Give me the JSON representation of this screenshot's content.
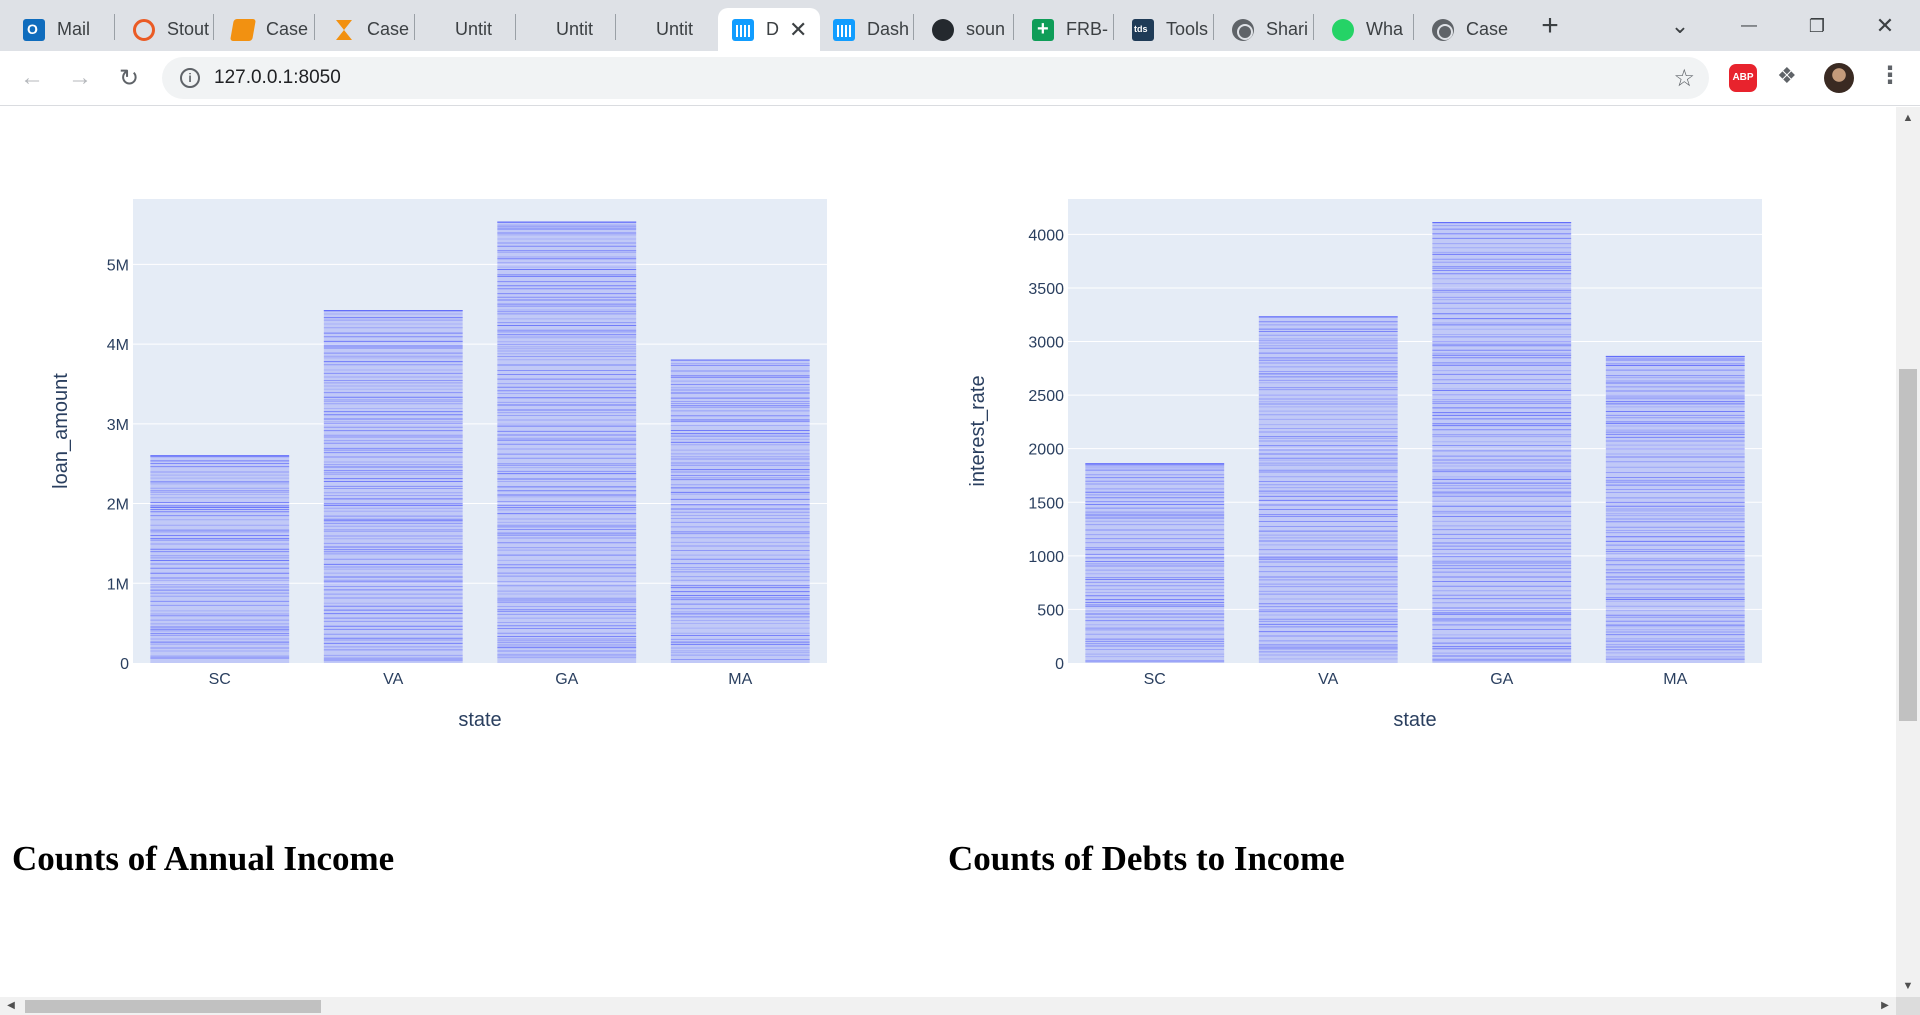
{
  "browser": {
    "tabs": [
      {
        "label": "Mail",
        "icon": "outlook-icon",
        "active": false
      },
      {
        "label": "Stout",
        "icon": "stout-icon",
        "active": false
      },
      {
        "label": "Case",
        "icon": "book-icon",
        "active": false
      },
      {
        "label": "Case",
        "icon": "hourglass-icon",
        "active": false
      },
      {
        "label": "Untit",
        "icon": "",
        "active": false
      },
      {
        "label": "Untit",
        "icon": "",
        "active": false
      },
      {
        "label": "Untit",
        "icon": "",
        "active": false
      },
      {
        "label": "D",
        "icon": "dash-icon",
        "active": true
      },
      {
        "label": "Dash",
        "icon": "dash-icon",
        "active": false
      },
      {
        "label": "soun",
        "icon": "github-icon",
        "active": false
      },
      {
        "label": "FRB-",
        "icon": "sheets-icon",
        "active": false
      },
      {
        "label": "Tools",
        "icon": "tds-icon",
        "active": false
      },
      {
        "label": "Shari",
        "icon": "globe-icon",
        "active": false
      },
      {
        "label": "Wha",
        "icon": "whatsapp-icon",
        "active": false
      },
      {
        "label": "Case",
        "icon": "globe-icon",
        "active": false
      }
    ],
    "new_tab_label": "+",
    "url": "127.0.0.1:8050",
    "extension_badge": "ABP",
    "controls": {
      "dropdown": "⌄",
      "minimize": "—",
      "restore": "❐",
      "close": "✕"
    }
  },
  "page": {
    "heading_left": "Counts of Annual Income",
    "heading_right": "Counts of Debts to Income"
  },
  "chart_data": [
    {
      "type": "bar",
      "categories": [
        "SC",
        "VA",
        "GA",
        "MA"
      ],
      "values": [
        2600000,
        4420000,
        5530000,
        3800000
      ],
      "xlabel": "state",
      "ylabel": "loan_amount",
      "ylim": [
        0,
        5820000
      ],
      "yticks": [
        0,
        1000000,
        2000000,
        3000000,
        4000000,
        5000000
      ],
      "ytick_labels": [
        "0",
        "1M",
        "2M",
        "3M",
        "4M",
        "5M"
      ],
      "color": "#636efa",
      "background": "#e5ecf6",
      "grid": true,
      "note_style": "stacked thin segments"
    },
    {
      "type": "bar",
      "categories": [
        "SC",
        "VA",
        "GA",
        "MA"
      ],
      "values": [
        1860,
        3230,
        4110,
        2860
      ],
      "xlabel": "state",
      "ylabel": "interest_rate",
      "ylim": [
        0,
        4330
      ],
      "yticks": [
        0,
        500,
        1000,
        1500,
        2000,
        2500,
        3000,
        3500,
        4000
      ],
      "ytick_labels": [
        "0",
        "500",
        "1000",
        "1500",
        "2000",
        "2500",
        "3000",
        "3500",
        "4000"
      ],
      "color": "#636efa",
      "background": "#e5ecf6",
      "grid": true,
      "note_style": "stacked thin segments"
    }
  ]
}
